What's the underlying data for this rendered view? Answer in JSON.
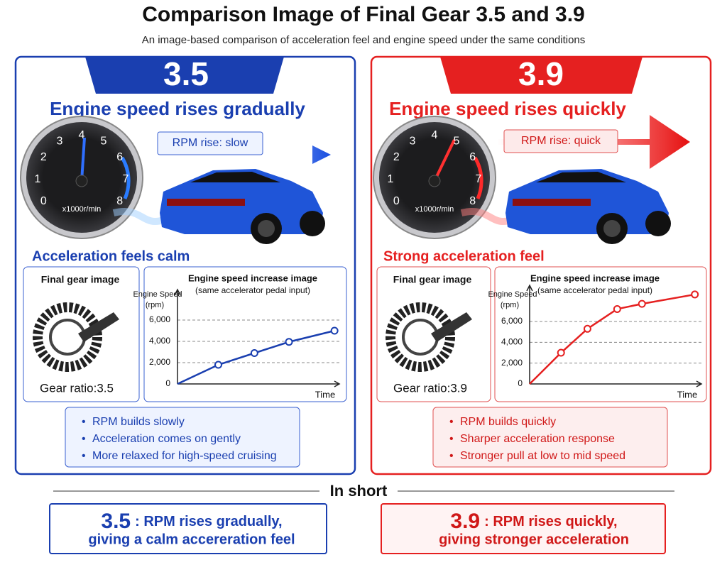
{
  "title": "Comparison Image of Final Gear 3.5 and 3.9",
  "subtitle": "An image-based comparison of acceleration feel and engine speed under the same conditions",
  "panels": [
    {
      "ratio": "3.5",
      "headline": "Engine speed rises gradually",
      "rpm_tag": "RPM rise: slow",
      "dial_labels": [
        0,
        1,
        2,
        3,
        4,
        5,
        6,
        7,
        8
      ],
      "dial_unit": "x1000r/min",
      "feel": "Acceleration feels calm",
      "gear_title": "Final gear image",
      "gear_ratio": "Gear ratio:3.5",
      "bullets": [
        "RPM builds slowly",
        "Acceleration comes on gently",
        "More relaxed for high-speed cruising"
      ]
    },
    {
      "ratio": "3.9",
      "headline": "Engine speed rises quickly",
      "rpm_tag": "RPM rise: quick",
      "dial_labels": [
        0,
        1,
        2,
        3,
        4,
        5,
        6,
        7,
        8
      ],
      "dial_unit": "x1000r/min",
      "feel": "Strong acceleration feel",
      "gear_title": "Final gear image",
      "gear_ratio": "Gear ratio:3.9",
      "bullets": [
        "RPM builds quickly",
        "Sharper acceleration response",
        "Stronger pull at low to mid speed"
      ]
    }
  ],
  "chart_data": [
    {
      "type": "line",
      "title": "Engine speed increase image",
      "subtitle": "(same accelerator pedal input)",
      "ylabel": "Engine Speed",
      "yunit": "(rpm)",
      "xlabel": "Time",
      "x": [
        0,
        2.6,
        4.9,
        7.1,
        10
      ],
      "xlim": [
        0,
        10.4
      ],
      "series": [
        {
          "color": "#1a3fb0",
          "values": [
            0,
            1800,
            2900,
            3950,
            5000
          ]
        }
      ],
      "ylim": [
        0,
        8200
      ],
      "yticks": [
        0,
        {
          "value": 2000,
          "label": "2,000"
        },
        {
          "value": 4000,
          "label": "4,000"
        },
        {
          "value": 6000,
          "label": "6,000"
        }
      ],
      "grid": true
    },
    {
      "type": "line",
      "title": "Engine speed increase image",
      "subtitle": "(same accelerator pedal input)",
      "ylabel": "Engine Speed",
      "yunit": "(rpm)",
      "xlabel": "Time",
      "x": [
        0,
        1.9,
        3.5,
        5.3,
        6.8,
        10
      ],
      "xlim": [
        0,
        10.4
      ],
      "series": [
        {
          "color": "#e52020",
          "values": [
            0,
            3000,
            5300,
            7200,
            7700,
            8600
          ]
        }
      ],
      "ylim": [
        0,
        8800
      ],
      "yticks": [
        0,
        {
          "value": 2000,
          "label": "2,000"
        },
        {
          "value": 4000,
          "label": "4,000"
        },
        {
          "value": 6000,
          "label": "6,000"
        }
      ],
      "grid": true
    }
  ],
  "in_short": "In short",
  "summary": [
    {
      "ratio": "3.5",
      "line_1": ": RPM rises gradually,",
      "line_2": "giving a calm accereration feel"
    },
    {
      "ratio": "3.9",
      "line_1": ": RPM rises quickly,",
      "line_2": "giving stronger acceleration"
    }
  ]
}
